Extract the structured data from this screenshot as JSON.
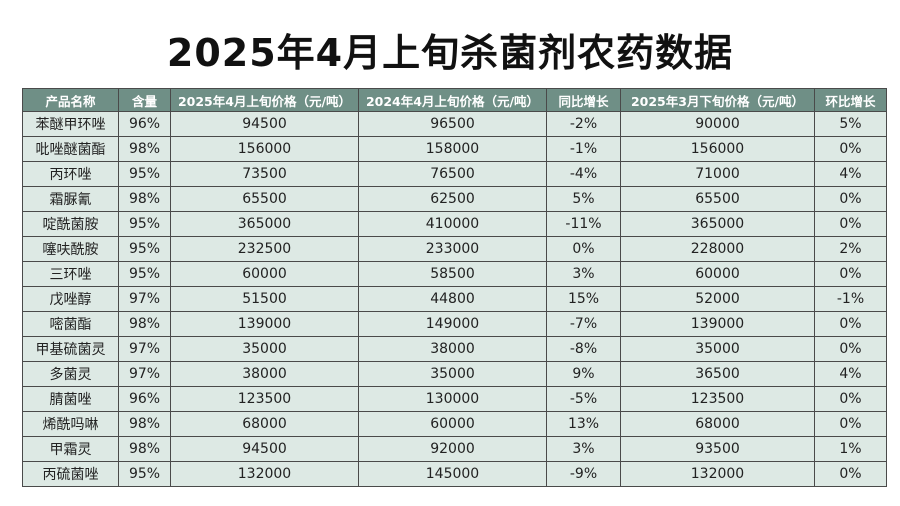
{
  "title": "2025年4月上旬杀菌剂农药数据",
  "table": {
    "headers": [
      "产品名称",
      "含量",
      "2025年4月上旬价格（元/吨）",
      "2024年4月上旬价格（元/吨）",
      "同比增长",
      "2025年3月下旬价格（元/吨）",
      "环比增长"
    ],
    "rows": [
      [
        "苯醚甲环唑",
        "96%",
        "94500",
        "96500",
        "-2%",
        "90000",
        "5%"
      ],
      [
        "吡唑醚菌酯",
        "98%",
        "156000",
        "158000",
        "-1%",
        "156000",
        "0%"
      ],
      [
        "丙环唑",
        "95%",
        "73500",
        "76500",
        "-4%",
        "71000",
        "4%"
      ],
      [
        "霜脲氰",
        "98%",
        "65500",
        "62500",
        "5%",
        "65500",
        "0%"
      ],
      [
        "啶酰菌胺",
        "95%",
        "365000",
        "410000",
        "-11%",
        "365000",
        "0%"
      ],
      [
        "噻呋酰胺",
        "95%",
        "232500",
        "233000",
        "0%",
        "228000",
        "2%"
      ],
      [
        "三环唑",
        "95%",
        "60000",
        "58500",
        "3%",
        "60000",
        "0%"
      ],
      [
        "戊唑醇",
        "97%",
        "51500",
        "44800",
        "15%",
        "52000",
        "-1%"
      ],
      [
        "嘧菌酯",
        "98%",
        "139000",
        "149000",
        "-7%",
        "139000",
        "0%"
      ],
      [
        "甲基硫菌灵",
        "97%",
        "35000",
        "38000",
        "-8%",
        "35000",
        "0%"
      ],
      [
        "多菌灵",
        "97%",
        "38000",
        "35000",
        "9%",
        "36500",
        "4%"
      ],
      [
        "腈菌唑",
        "96%",
        "123500",
        "130000",
        "-5%",
        "123500",
        "0%"
      ],
      [
        "烯酰吗啉",
        "98%",
        "68000",
        "60000",
        "13%",
        "68000",
        "0%"
      ],
      [
        "甲霜灵",
        "98%",
        "94500",
        "92000",
        "3%",
        "93500",
        "1%"
      ],
      [
        "丙硫菌唑",
        "95%",
        "132000",
        "145000",
        "-9%",
        "132000",
        "0%"
      ]
    ]
  }
}
